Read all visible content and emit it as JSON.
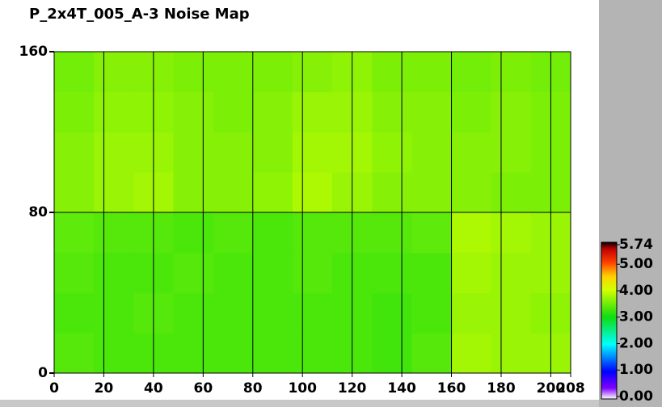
{
  "chart_data": {
    "type": "heatmap",
    "title": "P_2x4T_005_A-3 Noise Map",
    "xlim": [
      0,
      208
    ],
    "ylim": [
      0,
      160
    ],
    "xticks": [
      0,
      20,
      40,
      60,
      80,
      100,
      120,
      140,
      160,
      180,
      200,
      208
    ],
    "yticks": [
      0,
      80,
      160
    ],
    "xgrid": [
      20,
      40,
      60,
      80,
      100,
      120,
      140,
      160,
      180,
      200
    ],
    "ygrid": [
      80
    ],
    "z": [
      [
        3.35,
        3.3,
        3.3,
        3.3,
        3.3,
        3.3,
        3.3,
        3.3,
        3.25,
        3.35,
        3.75,
        3.7,
        3.7
      ],
      [
        3.3,
        3.3,
        3.35,
        3.3,
        3.3,
        3.3,
        3.3,
        3.3,
        3.25,
        3.3,
        3.7,
        3.7,
        3.65
      ],
      [
        3.35,
        3.3,
        3.3,
        3.35,
        3.3,
        3.3,
        3.35,
        3.3,
        3.3,
        3.3,
        3.75,
        3.7,
        3.7
      ],
      [
        3.4,
        3.35,
        3.35,
        3.3,
        3.35,
        3.3,
        3.35,
        3.35,
        3.35,
        3.4,
        3.8,
        3.75,
        3.7
      ],
      [
        3.6,
        3.7,
        3.75,
        3.6,
        3.6,
        3.65,
        3.8,
        3.7,
        3.6,
        3.6,
        3.6,
        3.55,
        3.55
      ],
      [
        3.6,
        3.7,
        3.7,
        3.6,
        3.6,
        3.6,
        3.75,
        3.75,
        3.65,
        3.6,
        3.6,
        3.6,
        3.55
      ],
      [
        3.55,
        3.65,
        3.65,
        3.6,
        3.55,
        3.6,
        3.7,
        3.7,
        3.6,
        3.6,
        3.55,
        3.6,
        3.55
      ],
      [
        3.5,
        3.6,
        3.6,
        3.55,
        3.55,
        3.55,
        3.6,
        3.65,
        3.55,
        3.55,
        3.5,
        3.55,
        3.5
      ]
    ],
    "clim": [
      0,
      5.74
    ],
    "cticks": [
      {
        "value": 5.74,
        "label": "5.74"
      },
      {
        "value": 5,
        "label": "5.00"
      },
      {
        "value": 4,
        "label": "4.00"
      },
      {
        "value": 3,
        "label": "3.00"
      },
      {
        "value": 2,
        "label": "2.00"
      },
      {
        "value": 1,
        "label": "1.00"
      },
      {
        "value": 0,
        "label": "0.00"
      }
    ],
    "colorscale": [
      [
        0,
        "#ffffff"
      ],
      [
        0.4,
        "#8000ff"
      ],
      [
        1,
        "#0000ff"
      ],
      [
        2,
        "#00ffff"
      ],
      [
        3,
        "#10dc10"
      ],
      [
        4,
        "#d4ff00"
      ],
      [
        4.5,
        "#ffd000"
      ],
      [
        5,
        "#ff4000"
      ],
      [
        5.5,
        "#c00000"
      ],
      [
        5.74,
        "#000000"
      ]
    ]
  }
}
